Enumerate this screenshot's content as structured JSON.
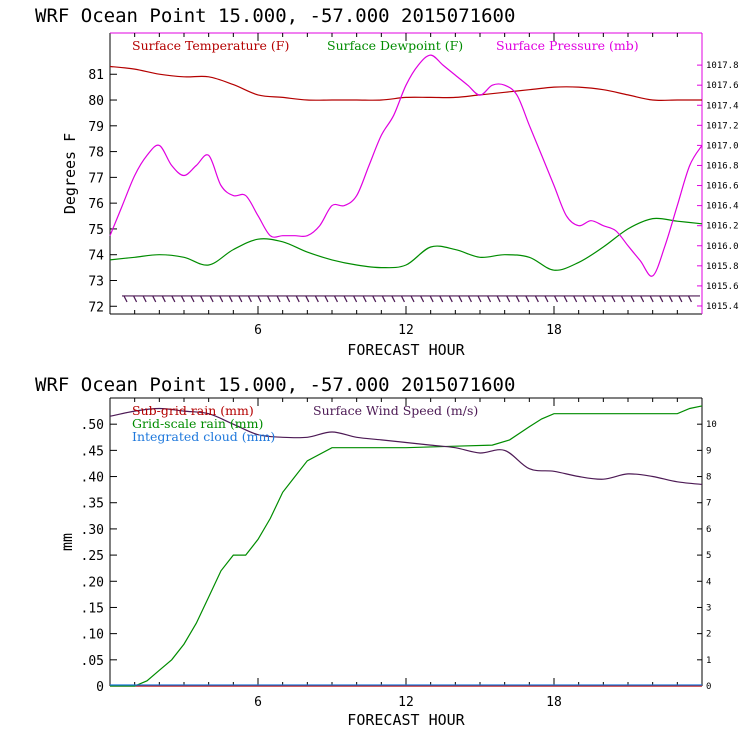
{
  "chart_data": [
    {
      "type": "line",
      "header": {
        "model": "WRF",
        "location": "Ocean Point",
        "coords": "15.000, -57.000",
        "init": "2015071600"
      },
      "xlabel": "FORECAST HOUR",
      "ylabel": "Degrees F",
      "xlim": [
        0,
        24
      ],
      "x_ticks": [
        6,
        12,
        18
      ],
      "ylim": [
        71.7,
        82.6
      ],
      "y_ticks": [
        72,
        73,
        74,
        75,
        76,
        77,
        78,
        79,
        80,
        81
      ],
      "y2lim": [
        1015.32,
        1018.12
      ],
      "y2_ticks": [
        1015.4,
        1015.6,
        1015.8,
        1016.0,
        1016.2,
        1016.4,
        1016.6,
        1016.8,
        1017.0,
        1017.2,
        1017.4,
        1017.6,
        1017.8
      ],
      "y2_tick_labels": [
        "1015.4",
        "1015.6",
        "1015.8",
        "1016.0",
        "1016.2",
        "1016.4",
        "1016.6",
        "1016.8",
        "1017.0",
        "1017.2",
        "1017.4",
        "1017.6",
        "1017.8"
      ],
      "series": [
        {
          "name": "Surface Temperature (F)",
          "color": "#b40000",
          "axis": "left",
          "x": [
            0,
            1,
            2,
            3,
            4,
            5,
            6,
            7,
            8,
            9,
            10,
            11,
            12,
            13,
            14,
            15,
            16,
            17,
            18,
            19,
            20,
            21,
            22,
            23,
            24
          ],
          "y": [
            81.3,
            81.2,
            81.0,
            80.9,
            80.9,
            80.6,
            80.2,
            80.1,
            80.0,
            80.0,
            80.0,
            80.0,
            80.1,
            80.1,
            80.1,
            80.2,
            80.3,
            80.4,
            80.5,
            80.5,
            80.4,
            80.2,
            80.0,
            80.0,
            80.0
          ]
        },
        {
          "name": "Surface Dewpoint (F)",
          "color": "#008c00",
          "axis": "left",
          "x": [
            0,
            1,
            2,
            3,
            4,
            5,
            6,
            7,
            8,
            9,
            10,
            11,
            12,
            13,
            14,
            15,
            16,
            17,
            18,
            19,
            20,
            21,
            22,
            23,
            24
          ],
          "y": [
            73.8,
            73.9,
            74.0,
            73.9,
            73.6,
            74.2,
            74.6,
            74.5,
            74.1,
            73.8,
            73.6,
            73.5,
            73.6,
            74.3,
            74.2,
            73.9,
            74.0,
            73.9,
            73.4,
            73.7,
            74.3,
            75.0,
            75.4,
            75.3,
            75.2
          ]
        },
        {
          "name": "Surface Pressure (mb)",
          "color": "#e000e0",
          "axis": "right",
          "x": [
            0,
            0.5,
            1,
            1.5,
            2,
            2.5,
            3,
            3.5,
            4,
            4.5,
            5,
            5.5,
            6,
            6.5,
            7,
            7.5,
            8,
            8.5,
            9,
            9.5,
            10,
            10.5,
            11,
            11.5,
            12,
            12.5,
            13,
            13.5,
            14,
            14.5,
            15,
            15.5,
            16,
            16.5,
            17,
            17.5,
            18,
            18.5,
            19,
            19.5,
            20,
            20.5,
            21,
            21.5,
            22,
            22.5,
            23,
            23.5,
            24
          ],
          "y": [
            1016.1,
            1016.4,
            1016.7,
            1016.9,
            1017.0,
            1016.8,
            1016.7,
            1016.8,
            1016.9,
            1016.6,
            1016.5,
            1016.5,
            1016.3,
            1016.1,
            1016.1,
            1016.1,
            1016.1,
            1016.2,
            1016.4,
            1016.4,
            1016.5,
            1016.8,
            1017.1,
            1017.3,
            1017.6,
            1017.8,
            1017.9,
            1017.8,
            1017.7,
            1017.6,
            1017.5,
            1017.6,
            1017.6,
            1017.5,
            1017.2,
            1016.9,
            1016.6,
            1016.3,
            1016.2,
            1016.25,
            1016.2,
            1016.15,
            1016.0,
            1015.85,
            1015.7,
            1016.0,
            1016.4,
            1016.8,
            1017.0
          ]
        }
      ],
      "legend": [
        {
          "label": "Surface Temperature (F)",
          "color": "#b40000"
        },
        {
          "label": "Surface Dewpoint (F)",
          "color": "#008c00"
        },
        {
          "label": "Surface Pressure (mb)",
          "color": "#e000e0"
        }
      ],
      "wind_barbs": {
        "y": 72.4,
        "count": 60,
        "color": "#4d1a55"
      }
    },
    {
      "type": "line",
      "header": {
        "model": "WRF",
        "location": "Ocean Point",
        "coords": "15.000, -57.000",
        "init": "2015071600"
      },
      "xlabel": "FORECAST HOUR",
      "ylabel": "mm",
      "xlim": [
        0,
        24
      ],
      "x_ticks": [
        6,
        12,
        18
      ],
      "ylim": [
        0,
        0.55
      ],
      "y_ticks": [
        0,
        0.05,
        0.1,
        0.15,
        0.2,
        0.25,
        0.3,
        0.35,
        0.4,
        0.45,
        0.5
      ],
      "y_tick_labels": [
        "0",
        ".05",
        ".10",
        ".15",
        ".20",
        ".25",
        ".30",
        ".35",
        ".40",
        ".45",
        ".50"
      ],
      "y2lim": [
        0,
        11
      ],
      "y2_ticks": [
        0,
        1,
        2,
        3,
        4,
        5,
        6,
        7,
        8,
        9,
        10
      ],
      "y2_tick_labels": [
        "0",
        "1",
        "2",
        "3",
        "4",
        "5",
        "6",
        "7",
        "8",
        "9",
        "10"
      ],
      "series": [
        {
          "name": "Sub-grid rain (mm)",
          "color": "#b40000",
          "axis": "left",
          "x": [
            0,
            24
          ],
          "y": [
            0,
            0
          ]
        },
        {
          "name": "Grid-scale rain (mm)",
          "color": "#008c00",
          "axis": "left",
          "x": [
            0,
            0.5,
            1.0,
            1.5,
            2.0,
            2.5,
            3.0,
            3.5,
            4.0,
            4.5,
            5.0,
            5.5,
            6.0,
            6.5,
            7.0,
            7.5,
            8.0,
            9.0,
            10.0,
            12.0,
            14.0,
            15.5,
            16.2,
            17.0,
            17.5,
            18.0,
            19.0,
            20.0,
            21.0,
            22.0,
            23.0,
            23.5,
            24.0
          ],
          "y": [
            0,
            0,
            0,
            0.01,
            0.03,
            0.05,
            0.08,
            0.12,
            0.17,
            0.22,
            0.25,
            0.25,
            0.28,
            0.32,
            0.37,
            0.4,
            0.43,
            0.455,
            0.455,
            0.455,
            0.458,
            0.46,
            0.47,
            0.495,
            0.51,
            0.52,
            0.52,
            0.52,
            0.52,
            0.52,
            0.52,
            0.53,
            0.535
          ]
        },
        {
          "name": "Integrated cloud (mm)",
          "color": "#1e78dc",
          "axis": "left",
          "x": [
            0,
            24
          ],
          "y": [
            0.002,
            0.002
          ]
        },
        {
          "name": "Surface Wind Speed (m/s)",
          "color": "#4d1a55",
          "axis": "right",
          "x": [
            0,
            1,
            2,
            3,
            4,
            5,
            6,
            7,
            8,
            9,
            10,
            11,
            12,
            13,
            14,
            15,
            16,
            17,
            18,
            19,
            20,
            21,
            22,
            23,
            24
          ],
          "y": [
            10.3,
            10.5,
            10.6,
            10.5,
            10.4,
            10.0,
            9.6,
            9.5,
            9.5,
            9.7,
            9.5,
            9.4,
            9.3,
            9.2,
            9.1,
            8.9,
            9.0,
            8.3,
            8.2,
            8.0,
            7.9,
            8.1,
            8.0,
            7.8,
            7.7
          ]
        }
      ],
      "legend": [
        {
          "label": "Sub-grid rain (mm)",
          "color": "#b40000"
        },
        {
          "label": "Surface Wind Speed (m/s)",
          "color": "#4d1a55"
        },
        {
          "label": "Grid-scale rain (mm)",
          "color": "#008c00"
        },
        {
          "label": "Integrated cloud (mm)",
          "color": "#1e78dc"
        }
      ]
    }
  ]
}
